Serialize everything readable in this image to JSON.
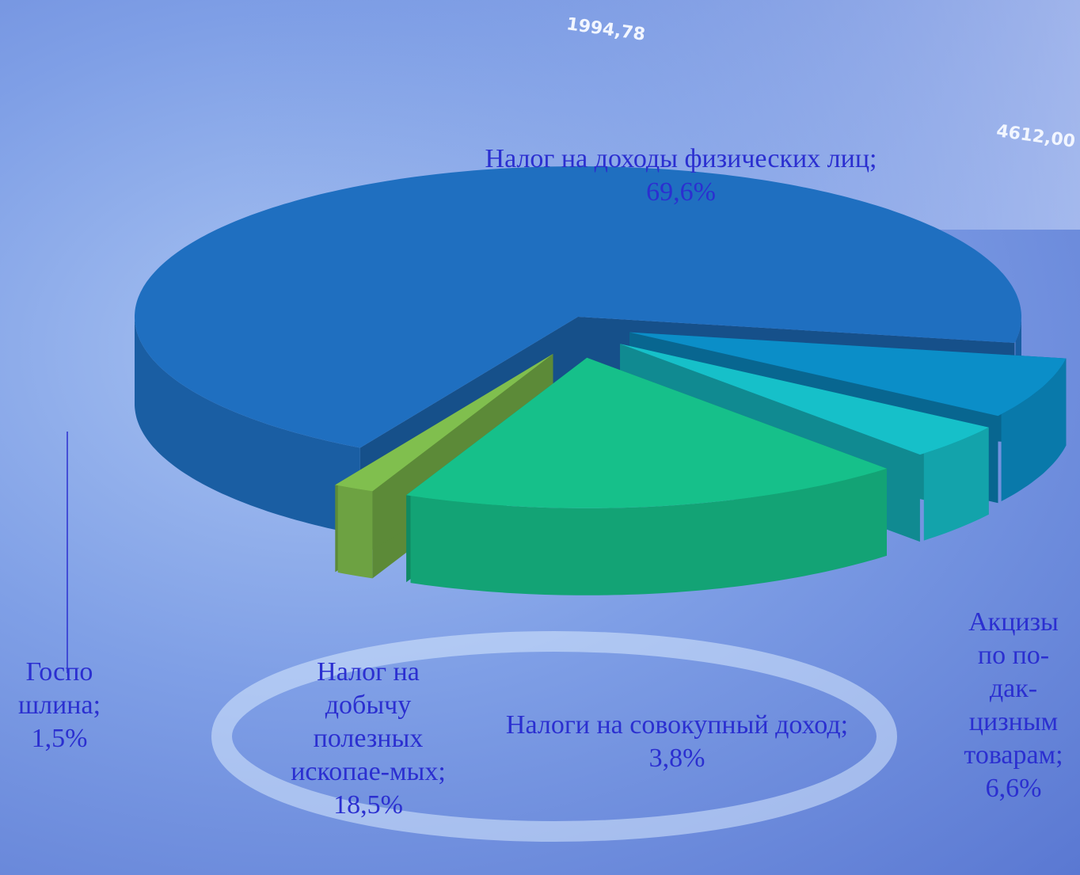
{
  "chart_data": {
    "type": "pie",
    "categories": [
      "Акцизы по по-дак-цизным товарам;",
      "Налоги на совокупный доход;",
      "Налог на добычу полезных ископае-мых;",
      "Госпо шлина;",
      "Налог на доходы физических лиц;"
    ],
    "values": [
      6.6,
      3.8,
      18.5,
      1.5,
      69.6
    ],
    "value_labels": [
      "6,6%",
      "3,8%",
      "18,5%",
      "1,5%",
      "69,6%"
    ],
    "colors": [
      "#0b8ec8",
      "#16c0c9",
      "#16c08a",
      "#80bf4e",
      "#1f6fc0"
    ],
    "explode": [
      true,
      true,
      true,
      true,
      false
    ],
    "start_angle": 10
  },
  "background_labels": [
    "1994,78",
    "4612,00"
  ]
}
